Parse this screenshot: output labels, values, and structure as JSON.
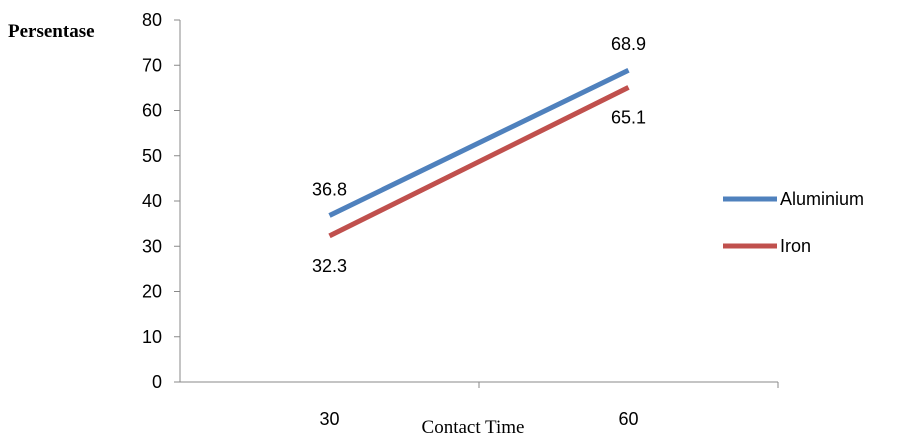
{
  "chart_data": {
    "type": "line",
    "x": [
      "30",
      "60"
    ],
    "series": [
      {
        "name": "Aluminium",
        "values": [
          36.8,
          68.9
        ],
        "color": "#4F81BD"
      },
      {
        "name": "Iron",
        "values": [
          32.3,
          65.1
        ],
        "color": "#C0504D"
      }
    ],
    "title": "",
    "xlabel": "Contact Time",
    "ylabel": "Persentase",
    "ylim": [
      0,
      80
    ],
    "yticks": [
      "0",
      "10",
      "20",
      "30",
      "40",
      "50",
      "60",
      "70",
      "80"
    ],
    "grid": false,
    "legend": "right"
  }
}
